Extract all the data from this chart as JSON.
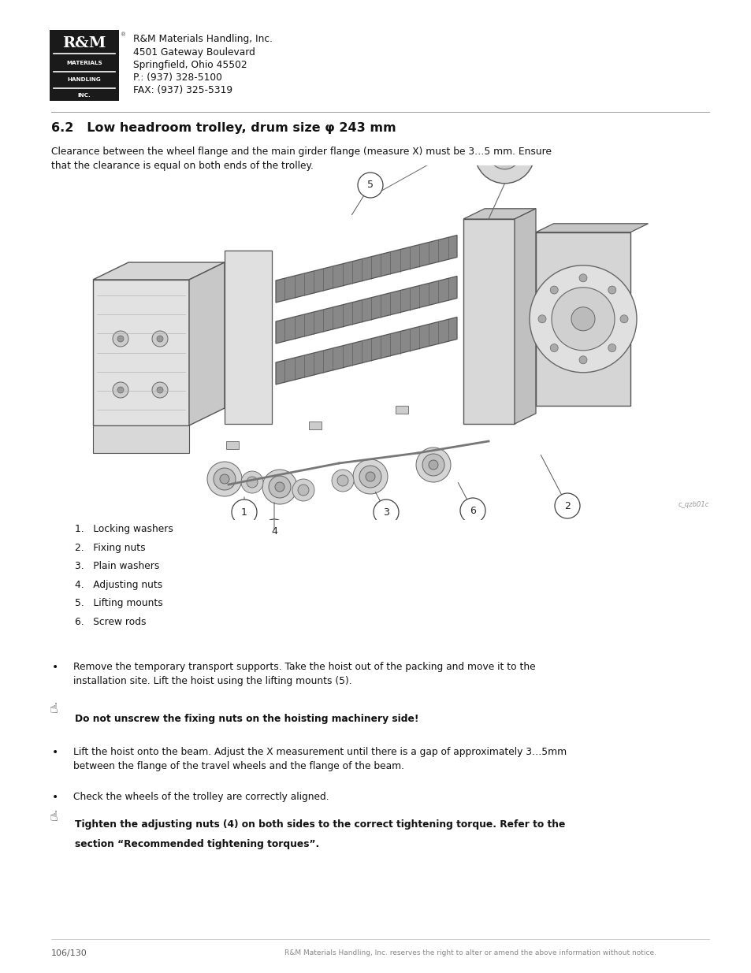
{
  "page_width": 9.54,
  "page_height": 12.35,
  "background_color": "#ffffff",
  "logo_box_color": "#1a1a1a",
  "company_info": [
    "R&M Materials Handling, Inc.",
    "4501 Gateway Boulevard",
    "Springfield, Ohio 45502",
    "P.: (937) 328-5100",
    "FAX: (937) 325-5319"
  ],
  "section_title": "6.2   Low headroom trolley, drum size φ 243 mm",
  "section_intro": "Clearance between the wheel flange and the main girder flange (measure X) must be 3…5 mm. Ensure\nthat the clearance is equal on both ends of the trolley.",
  "numbered_items": [
    "1.\tLocking washers",
    "2.\tFixing nuts",
    "3.\tPlain washers",
    "4.\tAdjusting nuts",
    "5.\tLifting mounts",
    "6.\tScrew rods"
  ],
  "bullet1": "Remove the temporary transport supports. Take the hoist out of the packing and move it to the\ninstallation site. Lift the hoist using the lifting mounts (5).",
  "warning1": "Do not unscrew the fixing nuts on the hoisting machinery side!",
  "bullet2": "Lift the hoist onto the beam. Adjust the X measurement until there is a gap of approximately 3…5mm\nbetween the flange of the travel wheels and the flange of the beam.",
  "bullet3": "Check the wheels of the trolley are correctly aligned.",
  "warning2_line1": "Tighten the adjusting nuts (4) on both sides to the correct tightening torque. Refer to the",
  "warning2_line2": "section “Recommended tightening torques”.",
  "page_number": "106/130",
  "footer_text": "R&M Materials Handling, Inc. reserves the right to alter or amend the above information without notice.",
  "watermark": "c_qzb01c"
}
